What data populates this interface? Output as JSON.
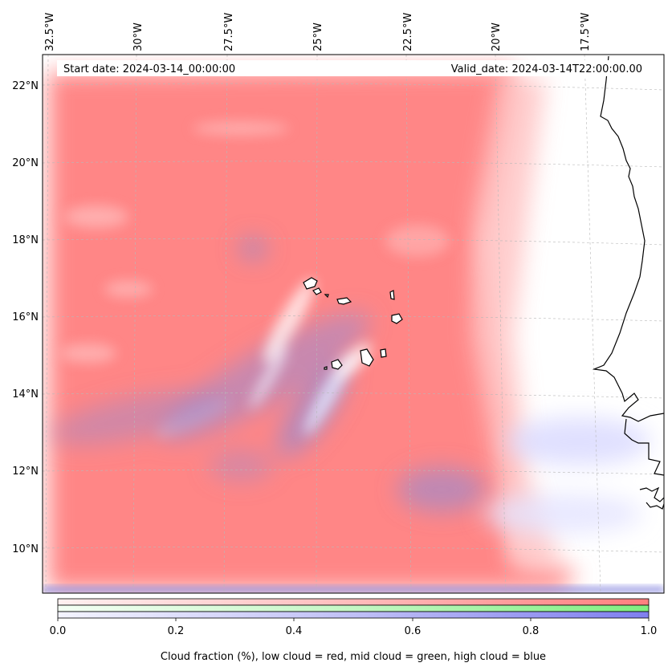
{
  "header": {
    "start_date": "Start date: 2024-03-14_00:00:00",
    "valid_date": "Valid_date: 2024-03-14T22:00:00.00"
  },
  "axes": {
    "lon_labels": [
      "32.5°W",
      "30°W",
      "27.5°W",
      "25°W",
      "22.5°W",
      "20°W",
      "17.5°W"
    ],
    "lat_labels": [
      "22°N",
      "20°N",
      "18°N",
      "16°N",
      "14°N",
      "12°N",
      "10°N"
    ]
  },
  "colorbar": {
    "ticks": [
      "0.0",
      "0.2",
      "0.4",
      "0.6",
      "0.8",
      "1.0"
    ],
    "label": "Cloud fraction (%), low cloud = red, mid cloud = green, high cloud = blue",
    "colors": {
      "low": "#ff7f7f",
      "mid": "#7fef7f",
      "high": "#7f7fef"
    }
  },
  "colors": {
    "low_cloud": "#ff8484",
    "high_cloud": "#8c8cd8",
    "coastline": "#000000",
    "grid": "#b0b0b0"
  }
}
